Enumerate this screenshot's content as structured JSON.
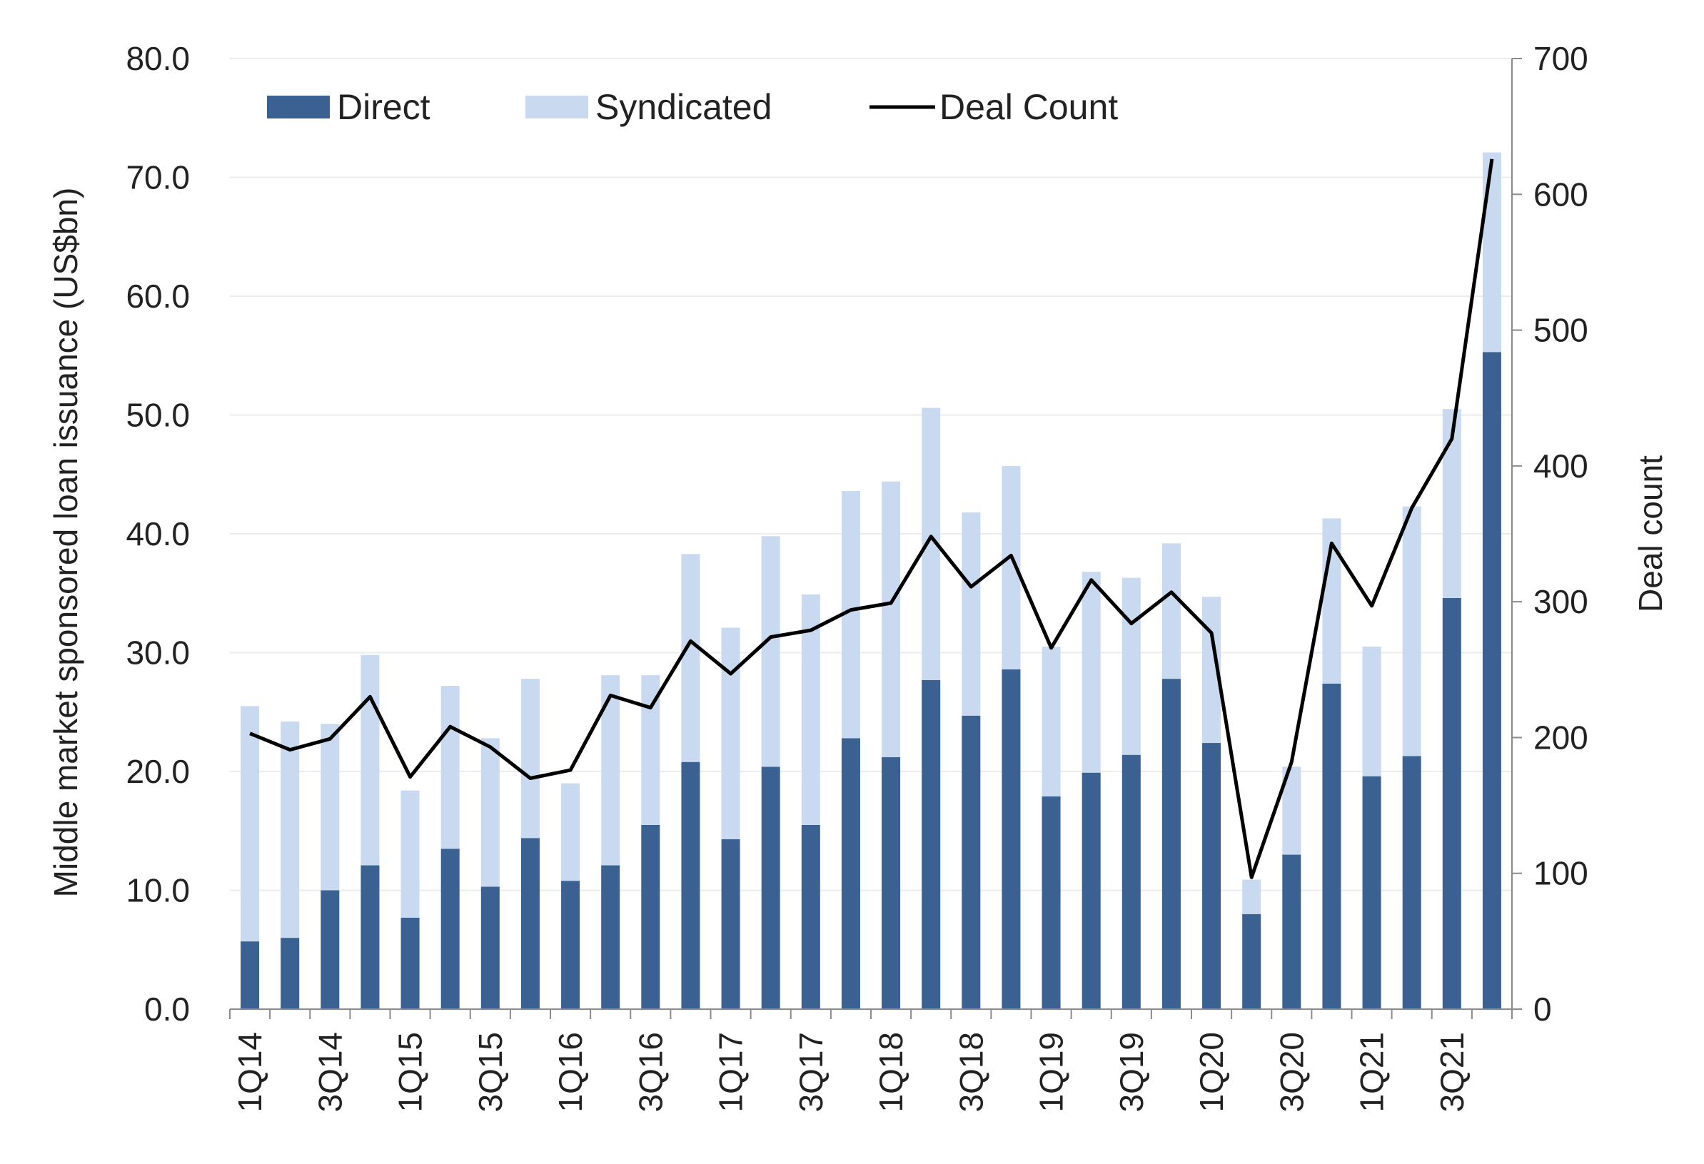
{
  "chart_data": {
    "type": "bar",
    "stacked": true,
    "title": "",
    "xlabel": "",
    "ylabel": "Middle market sponsored loan issuance (US$bn)",
    "y2label": "Deal count",
    "ylim": [
      0,
      80
    ],
    "y2lim": [
      0,
      700
    ],
    "yticks": [
      "0.0",
      "10.0",
      "20.0",
      "30.0",
      "40.0",
      "50.0",
      "60.0",
      "70.0",
      "80.0"
    ],
    "y2ticks": [
      "0",
      "100",
      "200",
      "300",
      "400",
      "500",
      "600",
      "700"
    ],
    "grid": true,
    "legend_position": "top-left",
    "categories": [
      "1Q14",
      "2Q14",
      "3Q14",
      "4Q14",
      "1Q15",
      "2Q15",
      "3Q15",
      "4Q15",
      "1Q16",
      "2Q16",
      "3Q16",
      "4Q16",
      "1Q17",
      "2Q17",
      "3Q17",
      "4Q17",
      "1Q18",
      "2Q18",
      "3Q18",
      "4Q18",
      "1Q19",
      "2Q19",
      "3Q19",
      "4Q19",
      "1Q20",
      "2Q20",
      "3Q20",
      "4Q20",
      "1Q21",
      "2Q21",
      "3Q21",
      "4Q21"
    ],
    "x_tick_labels": [
      "1Q14",
      "",
      "3Q14",
      "",
      "1Q15",
      "",
      "3Q15",
      "",
      "1Q16",
      "",
      "3Q16",
      "",
      "1Q17",
      "",
      "3Q17",
      "",
      "1Q18",
      "",
      "3Q18",
      "",
      "1Q19",
      "",
      "3Q19",
      "",
      "1Q20",
      "",
      "3Q20",
      "",
      "1Q21",
      "",
      "3Q21",
      ""
    ],
    "series": [
      {
        "name": "Direct",
        "kind": "bar",
        "axis": "left",
        "color": "#3a6191",
        "values": [
          5.7,
          6.0,
          10.0,
          12.1,
          7.7,
          13.5,
          10.3,
          14.4,
          10.8,
          12.1,
          15.5,
          20.8,
          14.3,
          20.4,
          15.5,
          22.8,
          21.2,
          27.7,
          24.7,
          28.6,
          17.9,
          19.9,
          21.4,
          27.8,
          22.4,
          8.0,
          13.0,
          27.4,
          19.6,
          21.3,
          34.6,
          55.3
        ]
      },
      {
        "name": "Syndicated",
        "kind": "bar",
        "axis": "left",
        "color": "#c9daf0",
        "values": [
          19.8,
          18.2,
          14.0,
          17.7,
          10.7,
          13.7,
          12.5,
          13.4,
          8.2,
          16.0,
          12.6,
          17.5,
          17.8,
          19.4,
          19.4,
          20.8,
          23.2,
          22.9,
          17.1,
          17.1,
          12.6,
          16.9,
          14.9,
          11.4,
          12.3,
          2.9,
          7.4,
          13.9,
          10.9,
          21.0,
          15.9,
          16.8
        ]
      },
      {
        "name": "Deal Count",
        "kind": "line",
        "axis": "right",
        "color": "#000000",
        "values": [
          203,
          191,
          199,
          230,
          171,
          208,
          193,
          170,
          176,
          231,
          222,
          271,
          247,
          274,
          279,
          294,
          299,
          348,
          311,
          334,
          266,
          316,
          284,
          307,
          277,
          97,
          182,
          343,
          297,
          369,
          420,
          626
        ]
      }
    ]
  }
}
